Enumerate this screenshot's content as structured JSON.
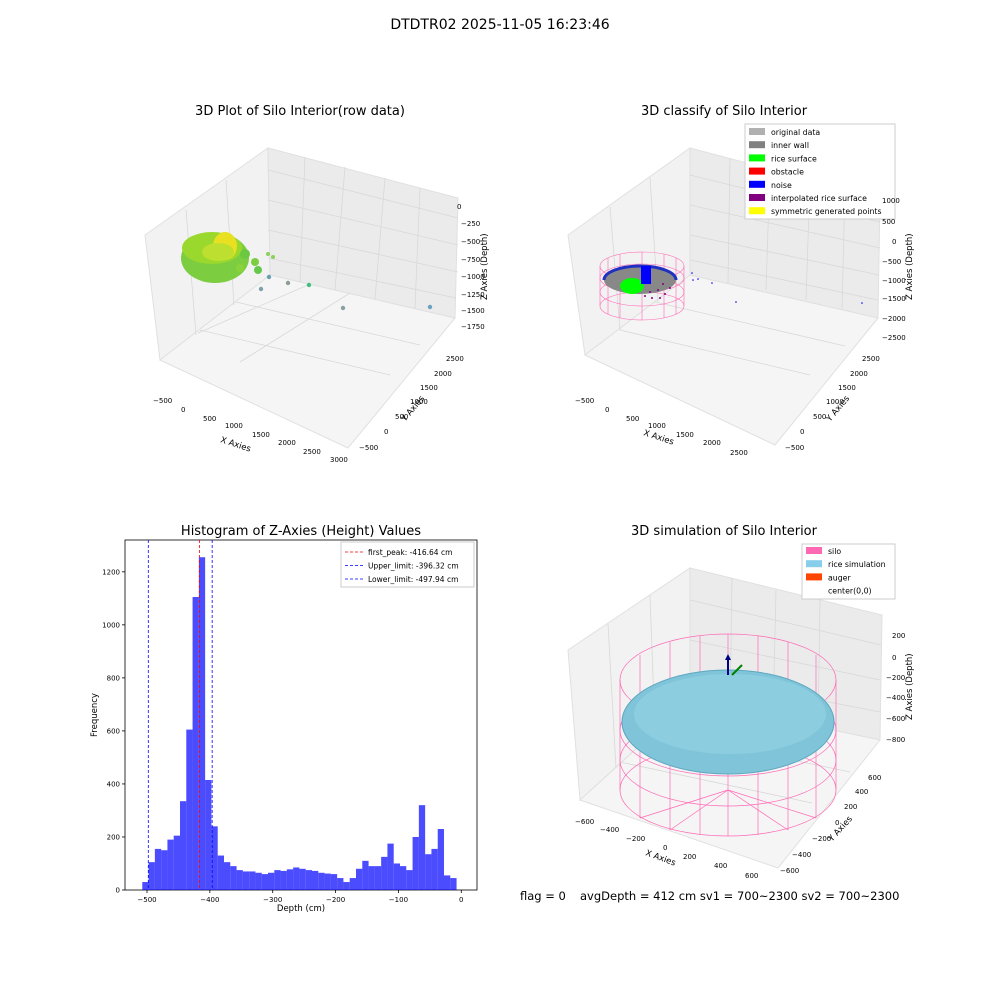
{
  "figure_title": "DTDTR02 2025-11-05 16:23:46",
  "panels": {
    "raw": {
      "title": "3D Plot of Silo Interior(row data)",
      "x_label": "X Axies",
      "y_label": "Y Axies",
      "z_label": "Z Axies (Depth)",
      "x_ticks": [
        "−500",
        "0",
        "500",
        "1000",
        "1500",
        "2000",
        "2500",
        "3000"
      ],
      "y_ticks": [
        "−500",
        "0",
        "500",
        "1000",
        "1500",
        "2000",
        "2500"
      ],
      "z_ticks": [
        "0",
        "−250",
        "−500",
        "−750",
        "−1000",
        "−1250",
        "−1500",
        "−1750"
      ]
    },
    "classify": {
      "title": "3D classify of Silo Interior",
      "x_label": "X Axies",
      "y_label": "Y Axies",
      "z_label": "Z Axies (Depth)",
      "x_ticks": [
        "−500",
        "0",
        "500",
        "1000",
        "1500",
        "2000",
        "2500"
      ],
      "y_ticks": [
        "−500",
        "0",
        "500",
        "1000",
        "1500",
        "2000",
        "2500"
      ],
      "z_ticks": [
        "1000",
        "500",
        "0",
        "−500",
        "−1000",
        "−1500",
        "−2000",
        "−2500"
      ],
      "legend": [
        {
          "label": "original data",
          "color": "#b0b0b0"
        },
        {
          "label": "inner wall",
          "color": "#808080"
        },
        {
          "label": "rice surface",
          "color": "#00ff00"
        },
        {
          "label": "obstacle",
          "color": "#ff0000"
        },
        {
          "label": "noise",
          "color": "#0000ff"
        },
        {
          "label": "interpolated rice surface",
          "color": "#800080"
        },
        {
          "label": "symmetric generated points",
          "color": "#ffff00"
        }
      ]
    },
    "simulation": {
      "title": "3D simulation of Silo Interior",
      "x_label": "X Axies",
      "y_label": "Y Axies",
      "z_label": "Z Axies (Depth)",
      "x_ticks": [
        "−600",
        "−400",
        "−200",
        "0",
        "200",
        "400",
        "600"
      ],
      "y_ticks": [
        "−600",
        "−400",
        "−200",
        "0",
        "200",
        "400",
        "600"
      ],
      "z_ticks": [
        "200",
        "0",
        "−200",
        "−400",
        "−600",
        "−800"
      ],
      "legend": [
        {
          "label": "silo",
          "color": "#ff69b4"
        },
        {
          "label": "rice simulation",
          "color": "#87ceeb"
        },
        {
          "label": "auger",
          "color": "#ff4500"
        },
        {
          "label": "center(0,0)",
          "color": ""
        }
      ]
    }
  },
  "chart_data": {
    "type": "bar",
    "title": "Histogram of Z-Axies (Height) Values",
    "xlabel": "Depth (cm)",
    "ylabel": "Frequency",
    "xlim": [
      -535,
      25
    ],
    "ylim": [
      0,
      1320
    ],
    "x_ticks": [
      -500,
      -400,
      -300,
      -200,
      -100,
      0
    ],
    "x_tick_labels": [
      "−500",
      "−400",
      "−300",
      "−200",
      "−100",
      "0"
    ],
    "y_ticks": [
      0,
      200,
      400,
      600,
      800,
      1000,
      1200
    ],
    "y_tick_labels": [
      "0",
      "200",
      "400",
      "600",
      "800",
      "1000",
      "1200"
    ],
    "bar_color": "#0000ff",
    "bins_start": -507.5,
    "bin_width": 10,
    "values": [
      30,
      105,
      155,
      150,
      190,
      205,
      335,
      605,
      1105,
      1255,
      415,
      240,
      130,
      105,
      90,
      75,
      70,
      70,
      65,
      60,
      65,
      75,
      72,
      78,
      85,
      80,
      75,
      72,
      65,
      62,
      60,
      45,
      30,
      45,
      80,
      110,
      90,
      90,
      125,
      175,
      100,
      90,
      75,
      200,
      320,
      135,
      155,
      230,
      55,
      45
    ],
    "lines": [
      {
        "label": "first_peak: -416.64 cm",
        "value": -416.64,
        "color": "#ff0000"
      },
      {
        "label": "Upper_limit: -396.32 cm",
        "value": -396.32,
        "color": "#0000ff"
      },
      {
        "label": "Lower_limit: -497.94 cm",
        "value": -497.94,
        "color": "#0000ff"
      }
    ],
    "legend_position": "top-right"
  },
  "footer": {
    "flag": "flag = 0",
    "stats": "avgDepth = 412 cm  sv1 = 700~2300  sv2 = 700~2300"
  }
}
